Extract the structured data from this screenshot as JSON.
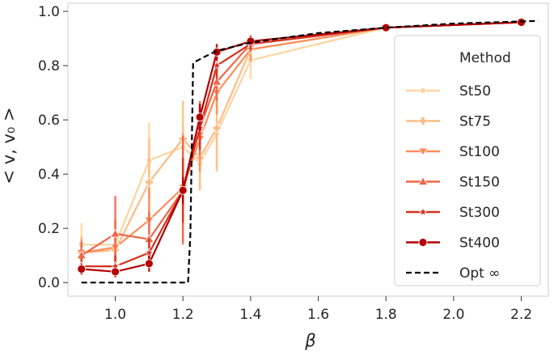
{
  "chart_data": {
    "type": "line",
    "title": "",
    "xlabel": "β",
    "ylabel": "< v, v₀ >",
    "xlim": [
      0.86,
      2.28
    ],
    "ylim": [
      -0.05,
      1.03
    ],
    "xticks": [
      1.0,
      1.2,
      1.4,
      1.6,
      1.8,
      2.0,
      2.2
    ],
    "xtick_labels": [
      "1.0",
      "1.2",
      "1.4",
      "1.6",
      "1.8",
      "2.0",
      "2.2"
    ],
    "yticks": [
      0.0,
      0.2,
      0.4,
      0.6,
      0.8,
      1.0
    ],
    "ytick_labels": [
      "0.0",
      "0.2",
      "0.4",
      "0.6",
      "0.8",
      "1.0"
    ],
    "grid": false,
    "legend": {
      "title": "Method",
      "placement": "right",
      "entries": [
        "St50",
        "St75",
        "St100",
        "St150",
        "St300",
        "St400",
        "Opt ∞"
      ]
    },
    "x": [
      0.9,
      1.0,
      1.1,
      1.2,
      1.25,
      1.3,
      1.4,
      1.8,
      2.2
    ],
    "series": [
      {
        "name": "St50",
        "color": "#fdd49e",
        "marker": "circle",
        "values": [
          0.14,
          0.14,
          0.45,
          0.5,
          0.44,
          0.55,
          0.82,
          0.94,
          0.96
        ],
        "err": [
          0.08,
          0.1,
          0.14,
          0.08,
          0.1,
          0.12,
          0.07,
          0.0,
          0.0
        ]
      },
      {
        "name": "St75",
        "color": "#fdbb84",
        "marker": "plus",
        "values": [
          0.11,
          0.12,
          0.37,
          0.53,
          0.46,
          0.57,
          0.86,
          0.94,
          0.96
        ],
        "err": [
          0.06,
          0.08,
          0.16,
          0.14,
          0.12,
          0.16,
          0.05,
          0.0,
          0.0
        ]
      },
      {
        "name": "St100",
        "color": "#fc8d59",
        "marker": "triangle-down",
        "values": [
          0.11,
          0.13,
          0.23,
          0.35,
          0.53,
          0.7,
          0.86,
          0.94,
          0.96
        ],
        "err": [
          0.05,
          0.1,
          0.12,
          0.2,
          0.12,
          0.08,
          0.04,
          0.0,
          0.0
        ]
      },
      {
        "name": "St150",
        "color": "#ef6548",
        "marker": "triangle-up",
        "values": [
          0.1,
          0.18,
          0.16,
          0.34,
          0.57,
          0.74,
          0.88,
          0.94,
          0.96
        ],
        "err": [
          0.05,
          0.14,
          0.1,
          0.2,
          0.1,
          0.07,
          0.03,
          0.0,
          0.0
        ]
      },
      {
        "name": "St300",
        "color": "#d7301f",
        "marker": "star",
        "values": [
          0.06,
          0.06,
          0.11,
          0.34,
          0.57,
          0.8,
          0.88,
          0.94,
          0.96
        ],
        "err": [
          0.03,
          0.04,
          0.05,
          0.12,
          0.08,
          0.05,
          0.02,
          0.0,
          0.0
        ]
      },
      {
        "name": "St400",
        "color": "#b30000",
        "marker": "circle-large",
        "values": [
          0.05,
          0.04,
          0.07,
          0.34,
          0.61,
          0.85,
          0.89,
          0.94,
          0.96
        ],
        "err": [
          0.02,
          0.02,
          0.03,
          0.05,
          0.05,
          0.03,
          0.02,
          0.0,
          0.0
        ]
      }
    ],
    "reference_curve": {
      "name": "Opt ∞",
      "color": "#000000",
      "style": "dashed",
      "x": [
        0.9,
        1.215,
        1.222,
        1.23,
        1.26,
        1.3,
        1.4,
        1.6,
        1.8,
        2.0,
        2.25
      ],
      "y": [
        0.0,
        0.0,
        0.18,
        0.81,
        0.83,
        0.855,
        0.885,
        0.92,
        0.94,
        0.955,
        0.965
      ]
    }
  }
}
